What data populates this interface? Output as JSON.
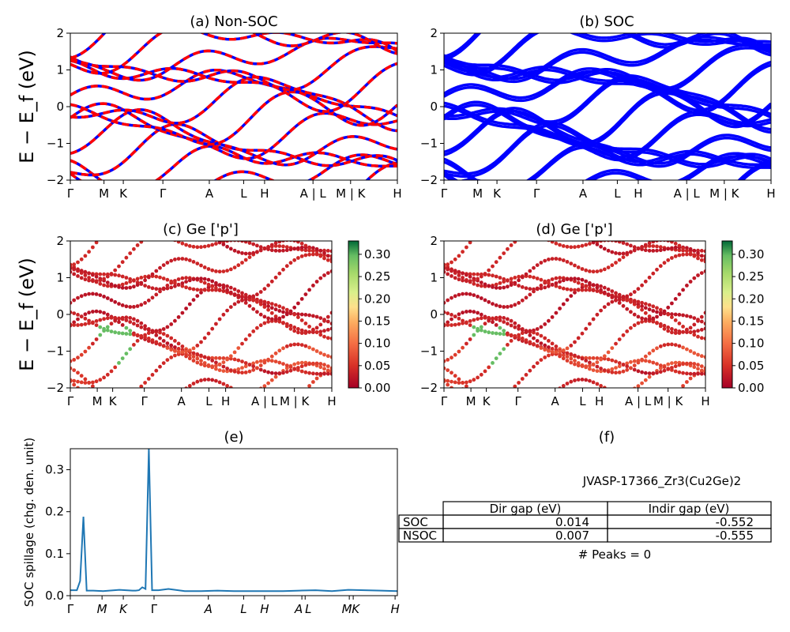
{
  "figure": {
    "material_label": "JVASP-17366_Zr3(Cu2Ge)2",
    "peaks_label": "# Peaks = 0"
  },
  "colors": {
    "nonsoc_red": "#ff0000",
    "soc_blue": "#0000ff",
    "spillage_line": "#1f77b4"
  },
  "kpath": [
    "Γ",
    "M",
    "K",
    "Γ",
    "A",
    "L",
    "H",
    "A | L",
    "M | K",
    "H"
  ],
  "kpath_spillage": [
    "Γ",
    "M",
    "K",
    "Γ",
    "A",
    "L",
    "H",
    "A",
    "L",
    "M",
    "K",
    "H"
  ],
  "chart_data": [
    {
      "id": "a",
      "type": "line",
      "title": "(a) Non-SOC",
      "ylabel": "E − E_f (eV)",
      "ylim": [
        -2,
        2
      ],
      "yticks": [
        "2",
        "1",
        "0",
        "−1",
        "−2"
      ],
      "xticks": [
        "Γ",
        "M",
        "K",
        "Γ",
        "A",
        "L",
        "H",
        "A | L",
        "M | K",
        "H"
      ],
      "series_styles": [
        "blue solid",
        "red dashed"
      ]
    },
    {
      "id": "b",
      "type": "line",
      "title": "(b) SOC",
      "ylim": [
        -2,
        2
      ],
      "yticks": [
        "2",
        "1",
        "0",
        "−1",
        "−2"
      ],
      "xticks": [
        "Γ",
        "M",
        "K",
        "Γ",
        "A",
        "L",
        "H",
        "A | L",
        "M | K",
        "H"
      ]
    },
    {
      "id": "c",
      "type": "scatter",
      "title": "(c)  Ge ['p']",
      "ylabel": "E − E_f (eV)",
      "ylim": [
        -2,
        2
      ],
      "yticks": [
        "2",
        "1",
        "0",
        "−1",
        "−2"
      ],
      "xticks": [
        "Γ",
        "M",
        "K",
        "Γ",
        "A",
        "L",
        "H",
        "A | L",
        "M | K",
        "H"
      ],
      "colorbar": {
        "range": [
          0,
          0.33
        ],
        "ticks": [
          "0.30",
          "0.25",
          "0.20",
          "0.15",
          "0.10",
          "0.05",
          "0.00"
        ]
      }
    },
    {
      "id": "d",
      "type": "scatter",
      "title": "(d) Ge ['p']",
      "ylim": [
        -2,
        2
      ],
      "yticks": [
        "2",
        "1",
        "0",
        "−1",
        "−2"
      ],
      "xticks": [
        "Γ",
        "M",
        "K",
        "Γ",
        "A",
        "L",
        "H",
        "A | L",
        "M | K",
        "H"
      ],
      "colorbar": {
        "range": [
          0,
          0.33
        ],
        "ticks": [
          "0.30",
          "0.25",
          "0.20",
          "0.15",
          "0.10",
          "0.05",
          "0.00"
        ]
      }
    },
    {
      "id": "e",
      "type": "line",
      "title": "(e)",
      "ylabel": "SOC spillage (chg. den. unit)",
      "ylim": [
        0,
        0.35
      ],
      "yticks": [
        "0.3",
        "0.2",
        "0.1",
        "0.0"
      ],
      "xticks": [
        "Γ",
        "M",
        "K",
        "Γ",
        "A",
        "L",
        "H",
        "A",
        "L",
        "M",
        "K",
        "H"
      ],
      "x": [
        0,
        1,
        2,
        3,
        4,
        5,
        5.5,
        6,
        6.5,
        7,
        10,
        15,
        19,
        20,
        21,
        22,
        23,
        24,
        25,
        26,
        27,
        30,
        35,
        40,
        45,
        50,
        55,
        60,
        63,
        65,
        70,
        75,
        80,
        85,
        90,
        95,
        100
      ],
      "values": [
        0.013,
        0.013,
        0.013,
        0.035,
        0.188,
        0.012,
        0.012,
        0.012,
        0.012,
        0.012,
        0.011,
        0.014,
        0.012,
        0.012,
        0.013,
        0.02,
        0.016,
        0.35,
        0.013,
        0.013,
        0.013,
        0.016,
        0.011,
        0.011,
        0.012,
        0.011,
        0.011,
        0.011,
        0.011,
        0.011,
        0.012,
        0.013,
        0.011,
        0.014,
        0.013,
        0.012,
        0.011
      ]
    },
    {
      "id": "f",
      "type": "table",
      "title": "(f)",
      "columns": [
        "",
        "Dir gap (eV)",
        "Indir gap (eV)"
      ],
      "rows": [
        [
          "SOC",
          "0.014",
          "-0.552"
        ],
        [
          "NSOC",
          "0.007",
          "-0.555"
        ]
      ]
    }
  ]
}
